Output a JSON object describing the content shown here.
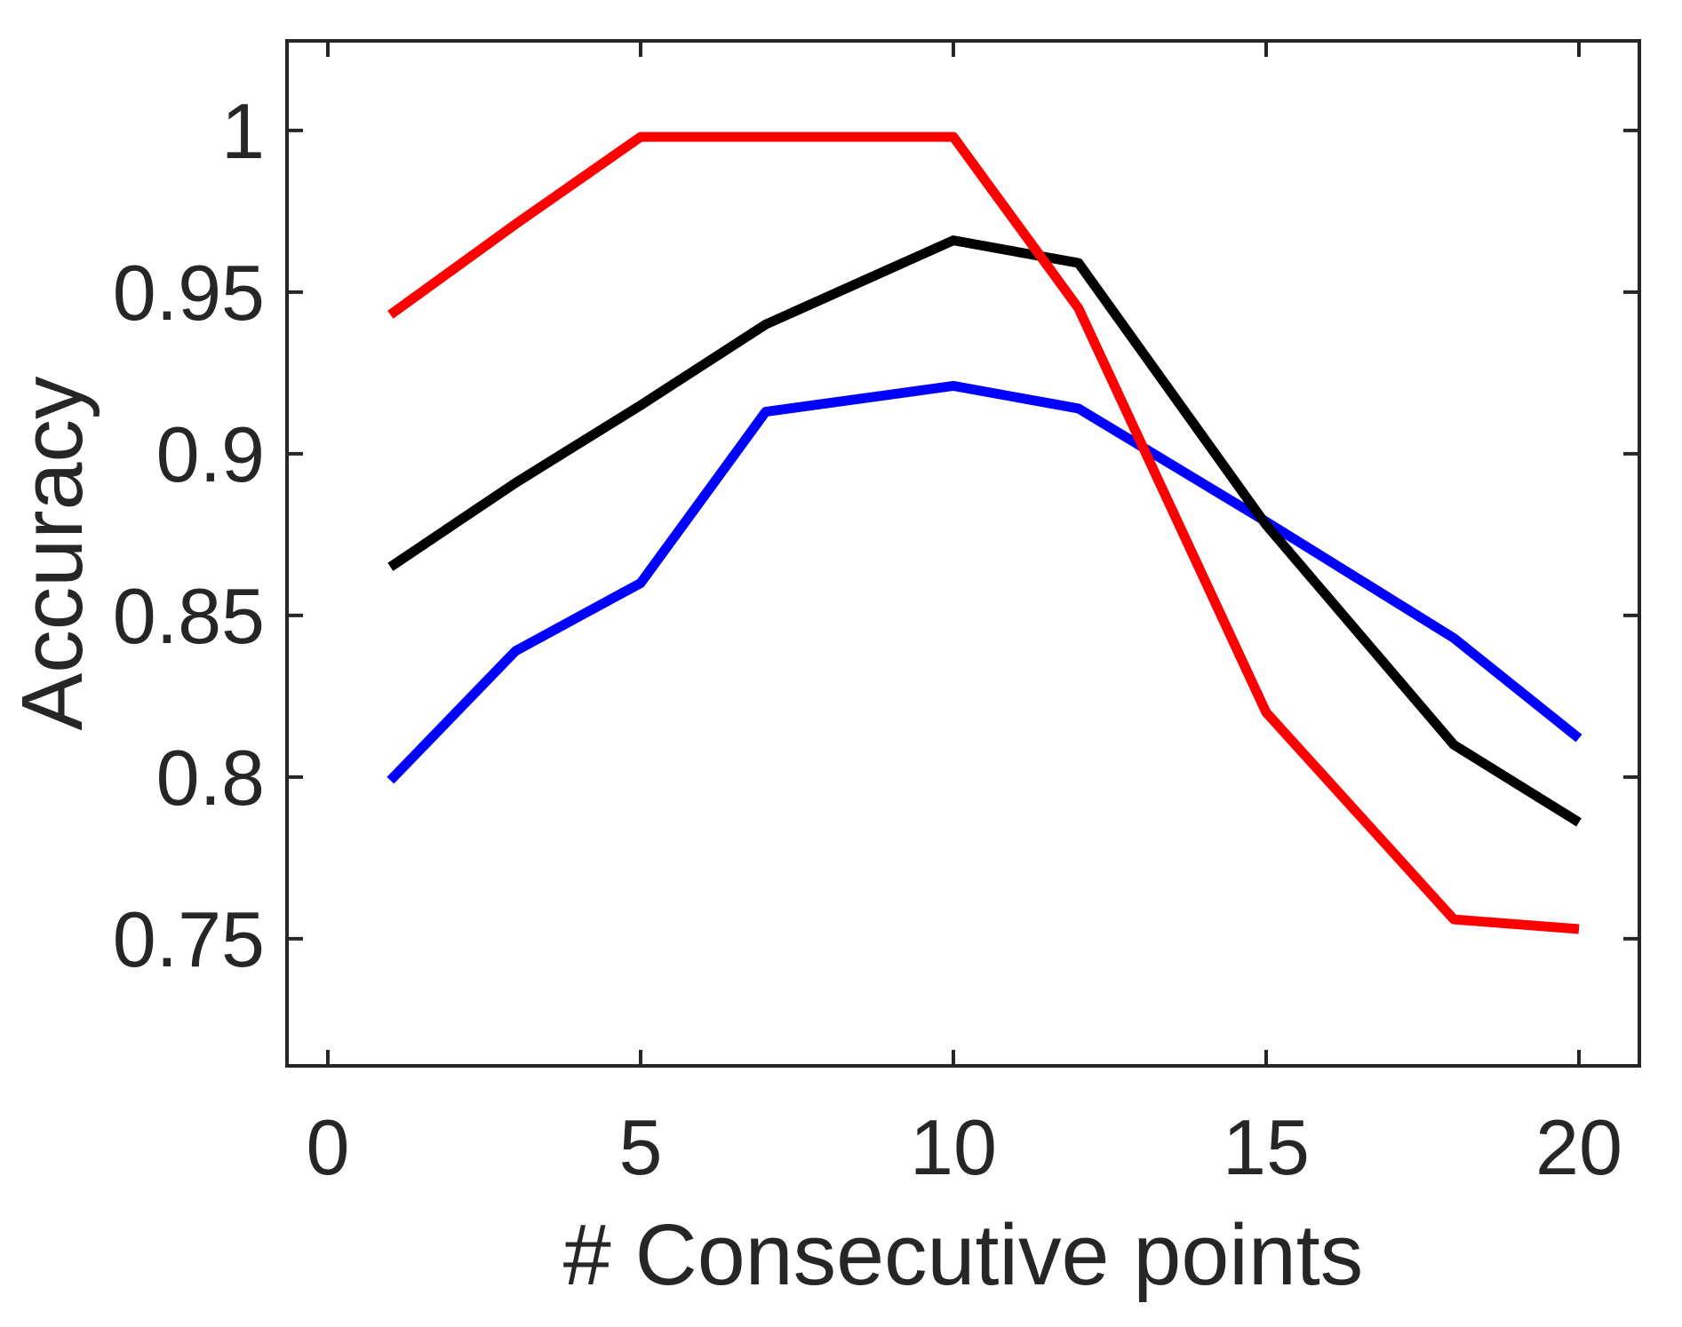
{
  "chart_data": {
    "type": "line",
    "title": "",
    "xlabel": "# Consecutive points",
    "ylabel": "Accuracy",
    "x": [
      1,
      3,
      5,
      7,
      10,
      12,
      15,
      18,
      20
    ],
    "series": [
      {
        "name": "blue-line",
        "color": "#0000ff",
        "values": [
          0.799,
          0.839,
          0.86,
          0.913,
          0.921,
          0.914,
          0.879,
          0.843,
          0.812
        ]
      },
      {
        "name": "black-line",
        "color": "#000000",
        "values": [
          0.865,
          0.891,
          0.915,
          0.94,
          0.966,
          0.959,
          0.878,
          0.81,
          0.786
        ]
      },
      {
        "name": "red-line",
        "color": "#ff0000",
        "values": [
          0.943,
          0.971,
          0.998,
          0.998,
          0.998,
          0.945,
          0.82,
          0.756,
          0.753
        ]
      }
    ],
    "xticks": {
      "values": [
        0,
        5,
        10,
        15,
        20
      ],
      "labels": [
        "0",
        "5",
        "10",
        "15",
        "20"
      ]
    },
    "yticks": {
      "values": [
        1,
        0.95,
        0.9,
        0.85,
        0.8,
        0.75
      ],
      "labels": [
        "1",
        "0.95",
        "0.9",
        "0.85",
        "0.8",
        "0.75"
      ]
    },
    "xlim": [
      -0.653,
      20.966
    ],
    "ylim": [
      0.7107,
      1.0277
    ],
    "grid": false,
    "legend": null,
    "box": true,
    "tick_direction": "in",
    "axis_color": "#262626",
    "background_color": "#ffffff"
  }
}
